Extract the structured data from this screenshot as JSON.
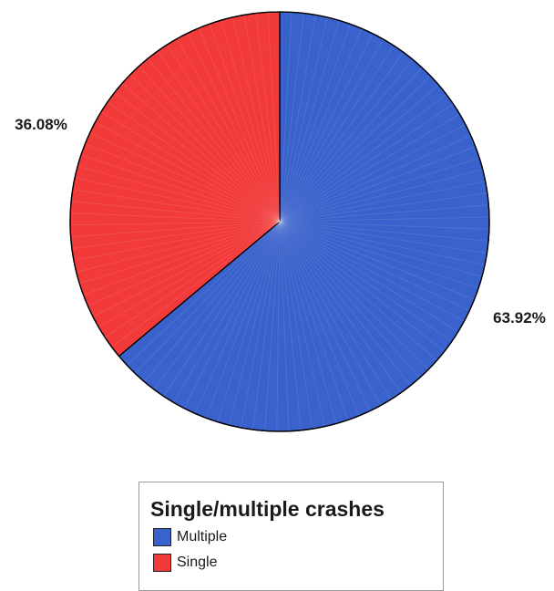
{
  "chart_data": {
    "type": "pie",
    "slices": [
      {
        "label": "Multiple",
        "value": 63.92,
        "value_label": "63.92%",
        "color": "#3a62cc"
      },
      {
        "label": "Single",
        "value": 36.08,
        "value_label": "36.08%",
        "color": "#f23a3a"
      }
    ],
    "start_direction": "top",
    "direction": "clockwise",
    "legend": {
      "title": "Single/multiple crashes",
      "position": "bottom"
    }
  }
}
